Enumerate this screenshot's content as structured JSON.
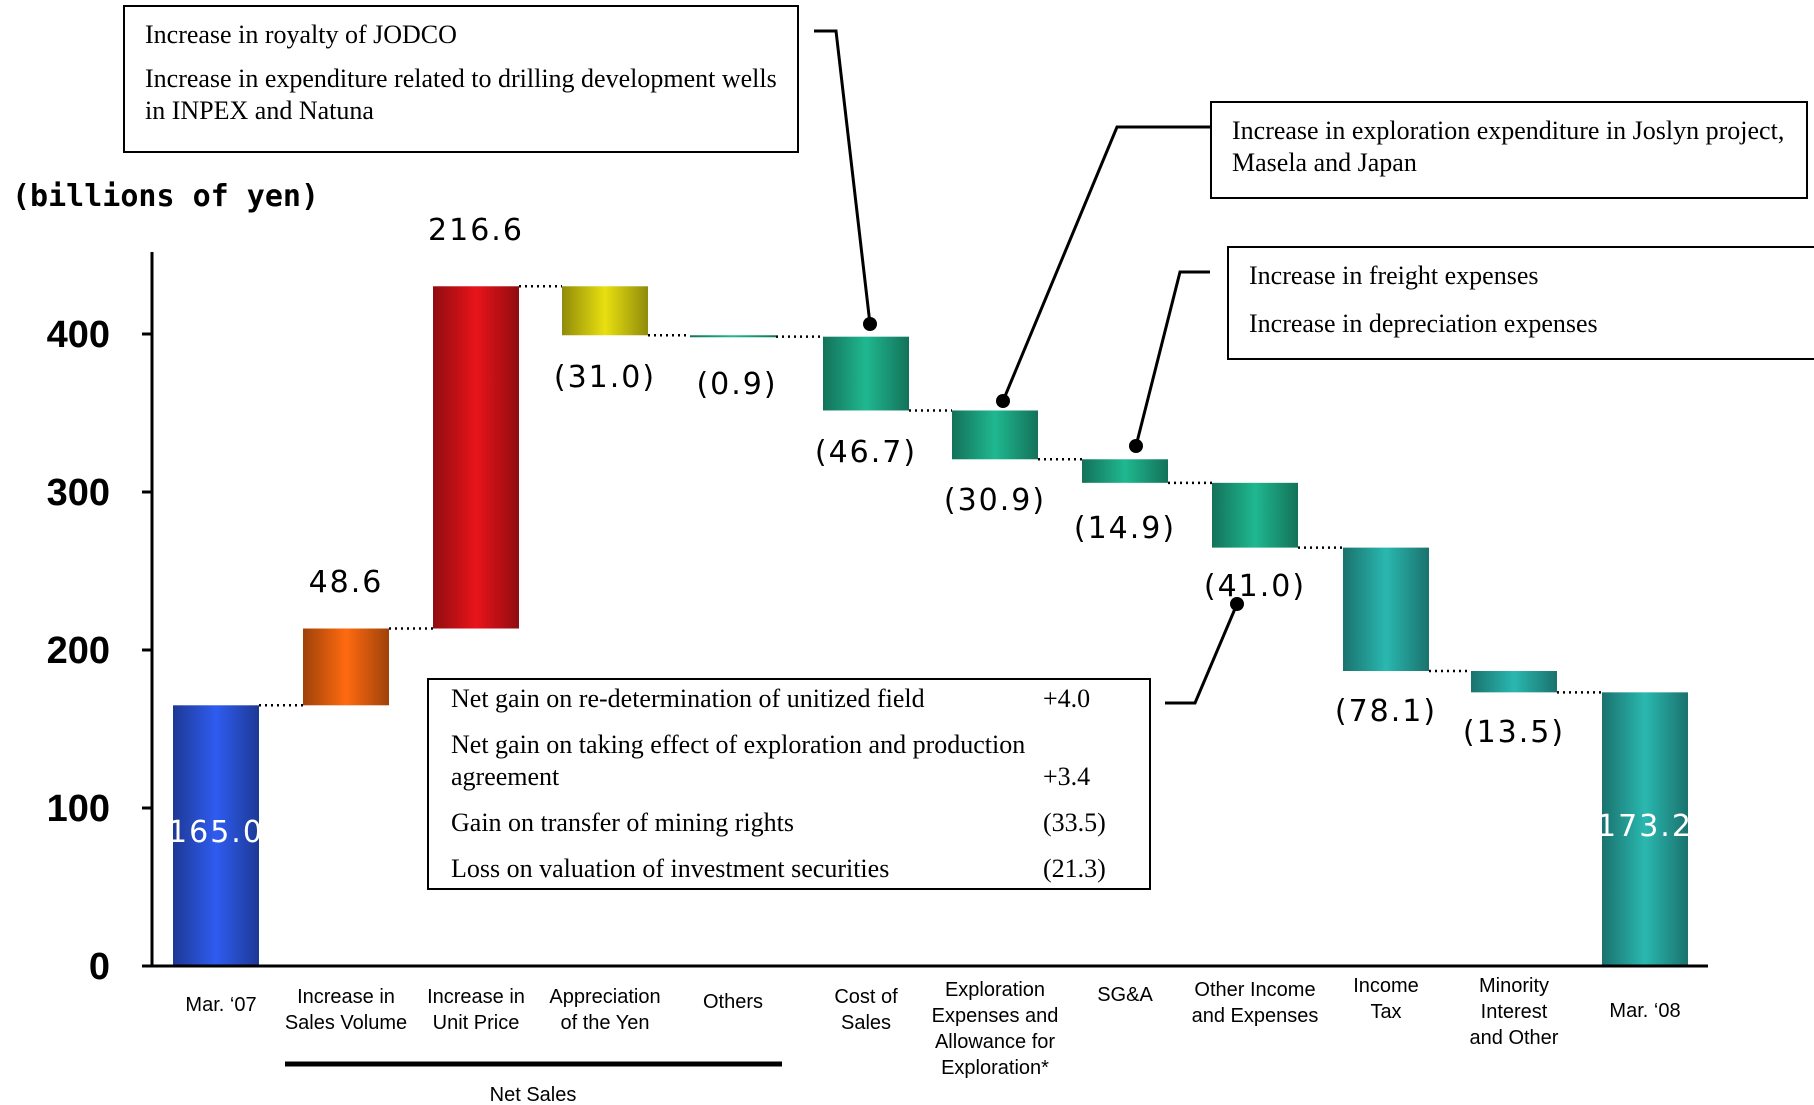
{
  "chart_data": {
    "type": "waterfall",
    "ylabel": "(billions of yen)",
    "ylim": [
      0,
      450
    ],
    "yticks": [
      0,
      100,
      200,
      300,
      400
    ],
    "categories": [
      "Mar. ‘07",
      "Increase in Sales Volume",
      "Increase in Unit Price",
      "Appreciation of the Yen",
      "Others",
      "Cost of Sales",
      "Exploration Expenses and Allowance for Exploration*",
      "SG&A",
      "Other Income and Expenses",
      "Income Tax",
      "Minority Interest and Other",
      "Mar. ‘08"
    ],
    "category_label_lines": [
      [
        "Mar. ‘07"
      ],
      [
        "Increase in",
        "Sales Volume"
      ],
      [
        "Increase in",
        "Unit Price"
      ],
      [
        "Appreciation",
        "of the Yen"
      ],
      [
        "Others"
      ],
      [
        "Cost of",
        "Sales"
      ],
      [
        "Exploration",
        "Expenses and",
        "Allowance for",
        "Exploration*"
      ],
      [
        "SG&A"
      ],
      [
        "Other Income",
        "and Expenses"
      ],
      [
        "Income",
        "Tax"
      ],
      [
        "Minority",
        "Interest",
        "and Other"
      ],
      [
        "Mar. ‘08"
      ]
    ],
    "values": [
      165.0,
      48.6,
      216.6,
      -31.0,
      -0.9,
      -46.7,
      -30.9,
      -14.9,
      -41.0,
      -78.1,
      -13.5,
      173.2
    ],
    "value_labels": [
      "165.0",
      "48.6",
      "216.6",
      "(31.0)",
      "(0.9)",
      "(46.7)",
      "(30.9)",
      "(14.9)",
      "(41.0)",
      "(78.1)",
      "(13.5)",
      "173.2"
    ],
    "kinds": [
      "total",
      "delta",
      "delta",
      "delta",
      "delta",
      "delta",
      "delta",
      "delta",
      "delta",
      "delta",
      "delta",
      "total"
    ],
    "colors": [
      "#2f5cf0",
      "#ff6a10",
      "#e8141a",
      "#e8e010",
      "#1fb890",
      "#1fb890",
      "#1fb890",
      "#1fb890",
      "#1fb890",
      "#2ab8b0",
      "#2ab8b0",
      "#2ab8b0"
    ],
    "group_bracket": {
      "label": "Net Sales",
      "from": 1,
      "to": 4
    }
  },
  "callouts": {
    "jodco": {
      "lines": [
        "Increase in royalty of JODCO",
        "Increase in expenditure related to drilling development wells in INPEX and Natuna"
      ]
    },
    "exploration": {
      "lines": [
        "Increase in exploration expenditure in Joslyn project, Masela and Japan"
      ]
    },
    "freight": {
      "lines": [
        "Increase in freight expenses",
        "Increase in depreciation expenses"
      ]
    },
    "other_income": {
      "rows": [
        {
          "label": "Net gain on re-determination of unitized field",
          "value": "+4.0"
        },
        {
          "label": "Net gain on taking effect of exploration and production agreement",
          "value": "+3.4"
        },
        {
          "label": "Gain on transfer of mining rights",
          "value": "(33.5)"
        },
        {
          "label": "Loss on valuation of investment securities",
          "value": "(21.3)"
        }
      ]
    }
  }
}
